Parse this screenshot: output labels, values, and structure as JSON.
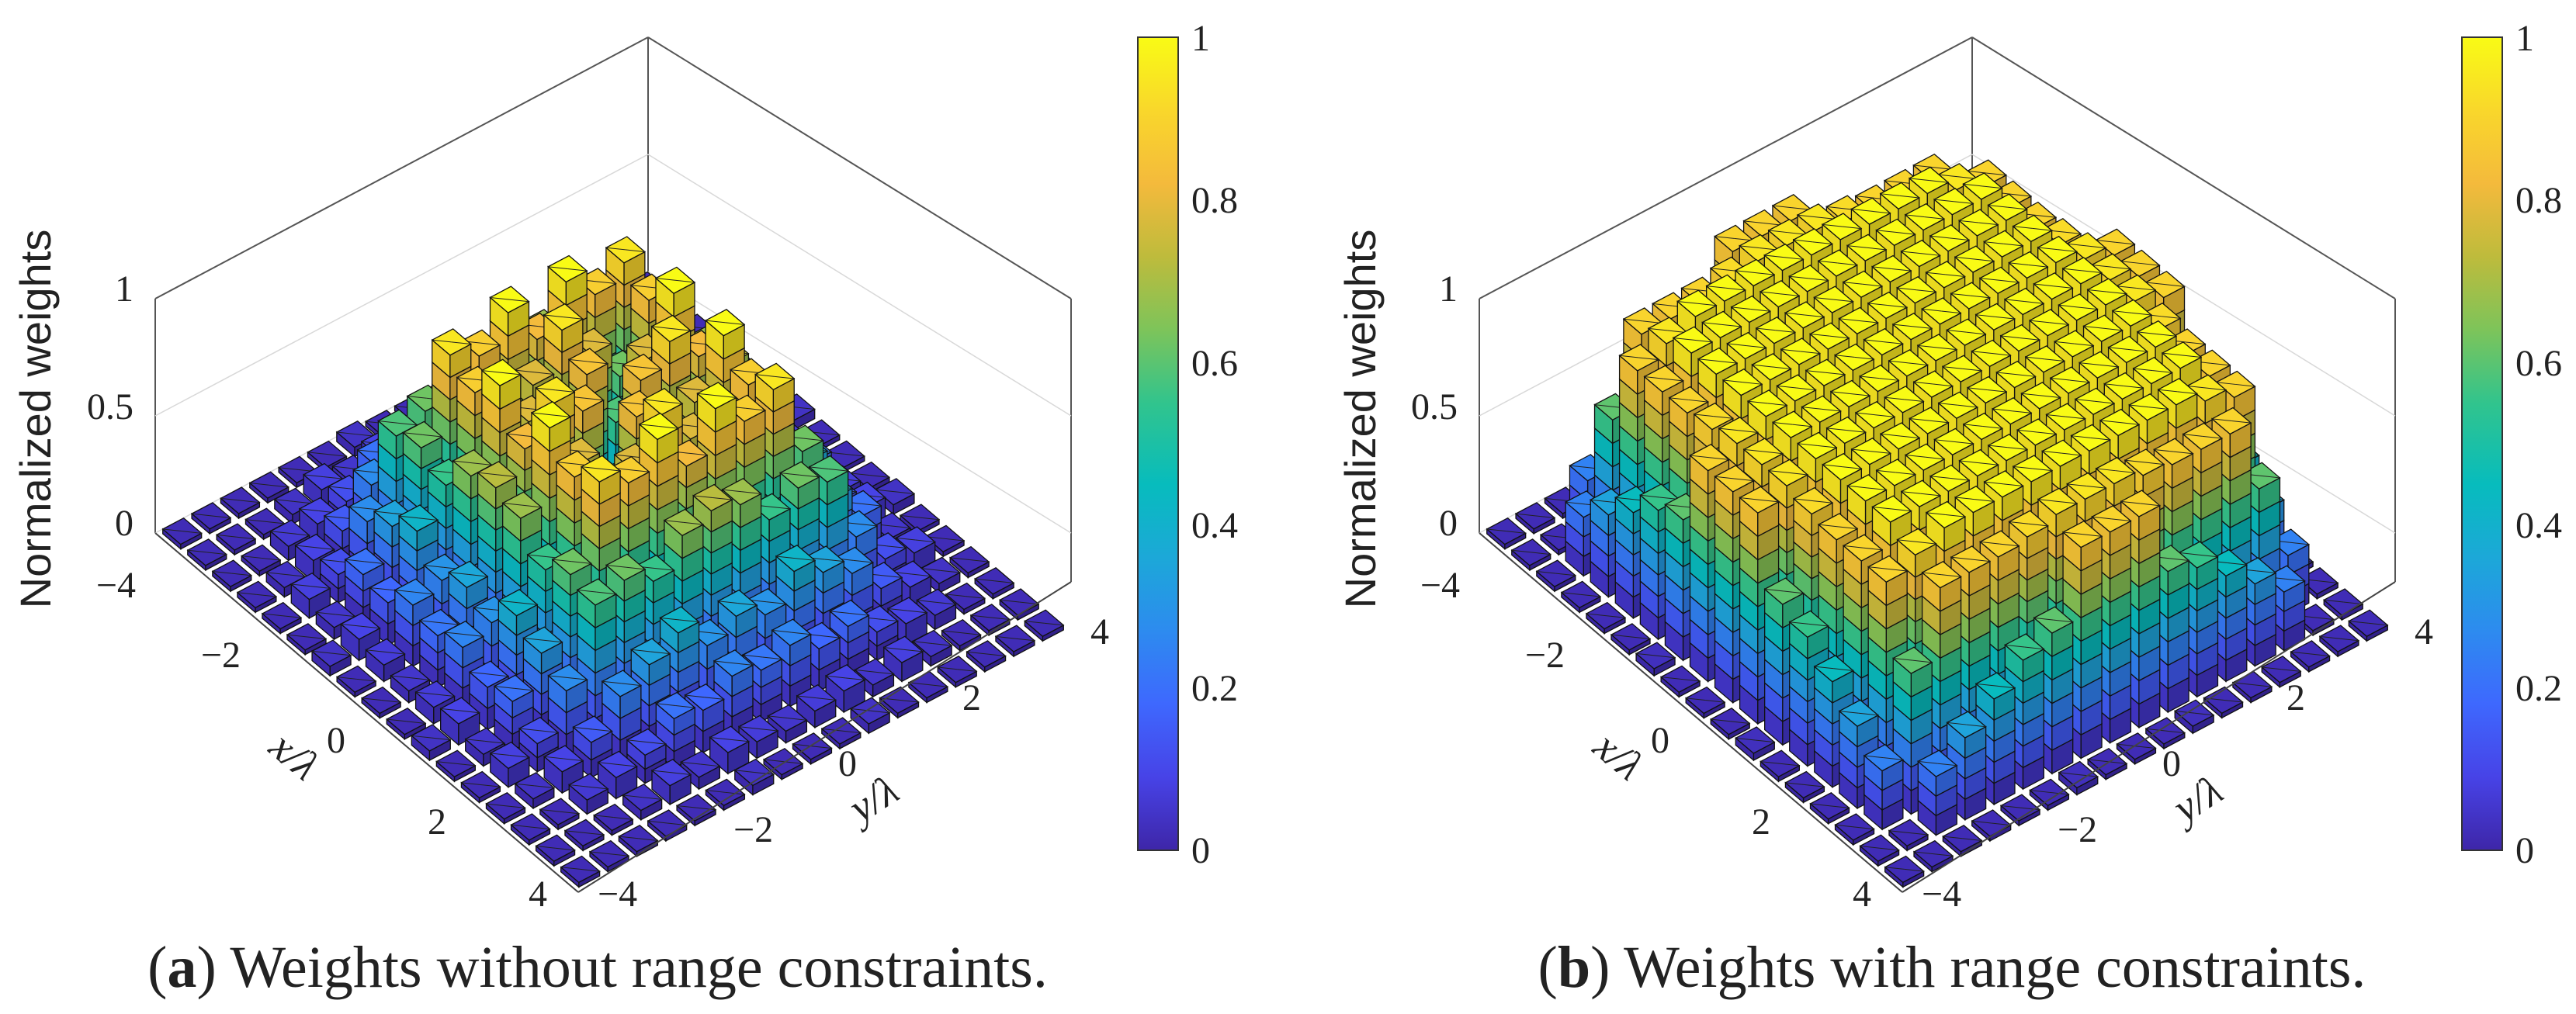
{
  "chart_data": [
    {
      "type": "bar3d",
      "panel_letter": "a",
      "caption_text": " Weights without range constraints.",
      "zlabel": "Normalized weights",
      "xlabel": "x/λ",
      "ylabel": "y/λ",
      "x_ticks": [
        "−4",
        "−2",
        "0",
        "2",
        "4"
      ],
      "y_ticks": [
        "−4",
        "−2",
        "0",
        "2",
        "4"
      ],
      "z_ticks": [
        "0",
        "0.5",
        "1"
      ],
      "colorbar_ticks": [
        "0",
        "0.2",
        "0.4",
        "0.6",
        "0.8",
        "1"
      ],
      "xlim": [
        -4,
        4
      ],
      "ylim": [
        -4,
        4
      ],
      "zlim": [
        0,
        1
      ],
      "clim": [
        0,
        1
      ],
      "colormap": [
        "#3e26a8",
        "#4743e7",
        "#3e68fe",
        "#2d8bef",
        "#1ca8d8",
        "#07bcbd",
        "#31c48d",
        "#7dc45a",
        "#bebb3c",
        "#f4ba3c",
        "#f9d72b",
        "#f9fb15"
      ],
      "grid_size": 17,
      "weights": [
        [
          0.02,
          0.02,
          0.02,
          0.02,
          0.02,
          0.02,
          0.04,
          0.02,
          0.02,
          0.02,
          0.04,
          0.02,
          0.02,
          0.02,
          0.02,
          0.02,
          0.02
        ],
        [
          0.02,
          0.02,
          0.02,
          0.04,
          0.08,
          0.05,
          0.09,
          0.07,
          0.05,
          0.07,
          0.09,
          0.05,
          0.08,
          0.04,
          0.02,
          0.02,
          0.02
        ],
        [
          0.02,
          0.02,
          0.06,
          0.09,
          0.12,
          0.21,
          0.18,
          0.26,
          0.22,
          0.26,
          0.18,
          0.21,
          0.12,
          0.09,
          0.06,
          0.02,
          0.02
        ],
        [
          0.02,
          0.04,
          0.09,
          0.15,
          0.28,
          0.35,
          0.42,
          0.3,
          0.36,
          0.3,
          0.42,
          0.35,
          0.28,
          0.15,
          0.09,
          0.04,
          0.02
        ],
        [
          0.02,
          0.08,
          0.12,
          0.28,
          0.58,
          0.62,
          0.55,
          0.68,
          0.72,
          0.68,
          0.55,
          0.62,
          0.58,
          0.28,
          0.12,
          0.08,
          0.02
        ],
        [
          0.02,
          0.05,
          0.21,
          0.35,
          0.62,
          0.95,
          0.88,
          1.0,
          0.82,
          1.0,
          0.88,
          0.95,
          0.62,
          0.35,
          0.21,
          0.05,
          0.02
        ],
        [
          0.04,
          0.09,
          0.18,
          0.42,
          0.55,
          0.88,
          0.62,
          0.78,
          0.95,
          0.78,
          0.62,
          0.88,
          0.55,
          0.42,
          0.18,
          0.09,
          0.04
        ],
        [
          0.02,
          0.07,
          0.26,
          0.3,
          0.68,
          1.0,
          0.78,
          0.58,
          0.85,
          0.58,
          0.78,
          1.0,
          0.68,
          0.3,
          0.26,
          0.07,
          0.02
        ],
        [
          0.02,
          0.05,
          0.22,
          0.36,
          0.72,
          0.82,
          0.95,
          0.85,
          0.45,
          0.85,
          0.95,
          0.82,
          0.72,
          0.36,
          0.22,
          0.05,
          0.02
        ],
        [
          0.02,
          0.07,
          0.26,
          0.3,
          0.68,
          1.0,
          0.78,
          0.58,
          0.85,
          0.58,
          0.78,
          1.0,
          0.68,
          0.3,
          0.26,
          0.07,
          0.02
        ],
        [
          0.04,
          0.09,
          0.18,
          0.42,
          0.55,
          0.88,
          0.62,
          0.78,
          0.95,
          0.78,
          0.62,
          0.88,
          0.55,
          0.42,
          0.18,
          0.09,
          0.04
        ],
        [
          0.02,
          0.05,
          0.21,
          0.35,
          0.62,
          0.95,
          0.88,
          1.0,
          0.82,
          1.0,
          0.88,
          0.95,
          0.62,
          0.35,
          0.21,
          0.05,
          0.02
        ],
        [
          0.02,
          0.08,
          0.12,
          0.28,
          0.58,
          0.62,
          0.55,
          0.68,
          0.72,
          0.68,
          0.55,
          0.62,
          0.58,
          0.28,
          0.12,
          0.08,
          0.02
        ],
        [
          0.02,
          0.04,
          0.09,
          0.15,
          0.28,
          0.35,
          0.42,
          0.3,
          0.36,
          0.3,
          0.42,
          0.35,
          0.28,
          0.15,
          0.09,
          0.04,
          0.02
        ],
        [
          0.02,
          0.02,
          0.06,
          0.09,
          0.12,
          0.21,
          0.18,
          0.26,
          0.22,
          0.26,
          0.18,
          0.21,
          0.12,
          0.09,
          0.06,
          0.02,
          0.02
        ],
        [
          0.02,
          0.02,
          0.02,
          0.04,
          0.08,
          0.05,
          0.09,
          0.07,
          0.05,
          0.07,
          0.09,
          0.05,
          0.08,
          0.04,
          0.02,
          0.02,
          0.02
        ],
        [
          0.02,
          0.02,
          0.02,
          0.02,
          0.02,
          0.02,
          0.04,
          0.02,
          0.02,
          0.02,
          0.04,
          0.02,
          0.02,
          0.02,
          0.02,
          0.02,
          0.02
        ]
      ]
    },
    {
      "type": "bar3d",
      "panel_letter": "b",
      "caption_text": " Weights with range constraints.",
      "zlabel": "Normalized weights",
      "xlabel": "x/λ",
      "ylabel": "y/λ",
      "x_ticks": [
        "−4",
        "−2",
        "0",
        "2",
        "4"
      ],
      "y_ticks": [
        "−4",
        "−2",
        "0",
        "2",
        "4"
      ],
      "z_ticks": [
        "0",
        "0.5",
        "1"
      ],
      "colorbar_ticks": [
        "0",
        "0.2",
        "0.4",
        "0.6",
        "0.8",
        "1"
      ],
      "xlim": [
        -4,
        4
      ],
      "ylim": [
        -4,
        4
      ],
      "zlim": [
        0,
        1
      ],
      "clim": [
        0,
        1
      ],
      "colormap": [
        "#3e26a8",
        "#4743e7",
        "#3e68fe",
        "#2d8bef",
        "#1ca8d8",
        "#07bcbd",
        "#31c48d",
        "#7dc45a",
        "#bebb3c",
        "#f4ba3c",
        "#f9d72b",
        "#f9fb15"
      ],
      "grid_size": 17,
      "weights": [
        [
          0.02,
          0.02,
          0.02,
          0.02,
          0.02,
          0.02,
          0.03,
          0.02,
          0.02,
          0.02,
          0.03,
          0.02,
          0.02,
          0.02,
          0.02,
          0.02,
          0.02
        ],
        [
          0.02,
          0.02,
          0.25,
          0.35,
          0.45,
          0.55,
          0.6,
          0.9,
          0.9,
          0.9,
          0.6,
          0.55,
          0.45,
          0.35,
          0.25,
          0.02,
          0.02
        ],
        [
          0.02,
          0.25,
          0.6,
          0.9,
          0.9,
          0.9,
          0.92,
          0.95,
          0.95,
          0.95,
          0.92,
          0.9,
          0.9,
          0.9,
          0.6,
          0.25,
          0.02
        ],
        [
          0.02,
          0.35,
          0.9,
          0.95,
          1.0,
          1.0,
          1.0,
          1.0,
          1.0,
          1.0,
          1.0,
          1.0,
          1.0,
          0.95,
          0.9,
          0.35,
          0.02
        ],
        [
          0.02,
          0.45,
          0.9,
          1.0,
          1.0,
          1.0,
          1.0,
          1.0,
          1.0,
          1.0,
          1.0,
          1.0,
          1.0,
          1.0,
          0.9,
          0.45,
          0.02
        ],
        [
          0.02,
          0.55,
          0.9,
          1.0,
          1.0,
          1.0,
          1.0,
          1.0,
          1.0,
          1.0,
          1.0,
          1.0,
          1.0,
          1.0,
          0.9,
          0.55,
          0.02
        ],
        [
          0.03,
          0.6,
          0.92,
          1.0,
          1.0,
          1.0,
          1.0,
          1.0,
          1.0,
          1.0,
          1.0,
          1.0,
          1.0,
          1.0,
          0.92,
          0.6,
          0.03
        ],
        [
          0.02,
          0.9,
          0.95,
          1.0,
          1.0,
          1.0,
          1.0,
          1.0,
          1.0,
          1.0,
          1.0,
          1.0,
          1.0,
          1.0,
          0.95,
          0.9,
          0.02
        ],
        [
          0.02,
          0.9,
          0.95,
          1.0,
          1.0,
          1.0,
          1.0,
          1.0,
          1.0,
          1.0,
          1.0,
          1.0,
          1.0,
          1.0,
          0.95,
          0.9,
          0.02
        ],
        [
          0.02,
          0.9,
          0.95,
          1.0,
          1.0,
          1.0,
          1.0,
          1.0,
          1.0,
          1.0,
          1.0,
          1.0,
          1.0,
          1.0,
          0.95,
          0.9,
          0.02
        ],
        [
          0.03,
          0.6,
          0.92,
          1.0,
          1.0,
          1.0,
          1.0,
          1.0,
          1.0,
          1.0,
          1.0,
          1.0,
          1.0,
          1.0,
          0.92,
          0.6,
          0.03
        ],
        [
          0.02,
          0.55,
          0.9,
          1.0,
          1.0,
          1.0,
          1.0,
          1.0,
          1.0,
          1.0,
          1.0,
          1.0,
          1.0,
          1.0,
          0.9,
          0.55,
          0.02
        ],
        [
          0.02,
          0.45,
          0.9,
          1.0,
          1.0,
          1.0,
          1.0,
          1.0,
          1.0,
          1.0,
          1.0,
          1.0,
          1.0,
          1.0,
          0.9,
          0.45,
          0.02
        ],
        [
          0.02,
          0.35,
          0.9,
          0.95,
          1.0,
          1.0,
          1.0,
          1.0,
          1.0,
          1.0,
          1.0,
          1.0,
          1.0,
          0.95,
          0.9,
          0.35,
          0.02
        ],
        [
          0.02,
          0.25,
          0.6,
          0.9,
          0.9,
          0.9,
          0.92,
          0.95,
          0.95,
          0.95,
          0.92,
          0.9,
          0.9,
          0.9,
          0.6,
          0.25,
          0.02
        ],
        [
          0.02,
          0.02,
          0.25,
          0.35,
          0.45,
          0.55,
          0.6,
          0.9,
          0.9,
          0.9,
          0.6,
          0.55,
          0.45,
          0.35,
          0.25,
          0.02,
          0.02
        ],
        [
          0.02,
          0.02,
          0.02,
          0.02,
          0.02,
          0.02,
          0.03,
          0.02,
          0.02,
          0.02,
          0.03,
          0.02,
          0.02,
          0.02,
          0.02,
          0.02,
          0.02
        ]
      ]
    }
  ]
}
